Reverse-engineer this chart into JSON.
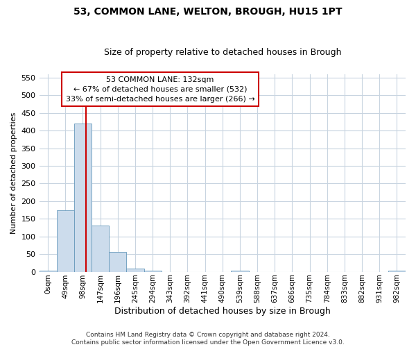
{
  "title": "53, COMMON LANE, WELTON, BROUGH, HU15 1PT",
  "subtitle": "Size of property relative to detached houses in Brough",
  "xlabel": "Distribution of detached houses by size in Brough",
  "ylabel": "Number of detached properties",
  "footnote": "Contains HM Land Registry data © Crown copyright and database right 2024.\nContains public sector information licensed under the Open Government Licence v3.0.",
  "bar_labels": [
    "0sqm",
    "49sqm",
    "98sqm",
    "147sqm",
    "196sqm",
    "245sqm",
    "294sqm",
    "343sqm",
    "392sqm",
    "441sqm",
    "490sqm",
    "539sqm",
    "588sqm",
    "637sqm",
    "686sqm",
    "735sqm",
    "784sqm",
    "833sqm",
    "882sqm",
    "931sqm",
    "982sqm"
  ],
  "bar_values": [
    3,
    175,
    420,
    130,
    57,
    8,
    3,
    0,
    0,
    0,
    0,
    3,
    0,
    0,
    0,
    0,
    0,
    0,
    0,
    0,
    3
  ],
  "bar_color": "#ccdcec",
  "bar_edgecolor": "#6699bb",
  "vline_color": "#cc0000",
  "annotation_text": "53 COMMON LANE: 132sqm\n← 67% of detached houses are smaller (532)\n33% of semi-detached houses are larger (266) →",
  "annotation_box_color": "#ffffff",
  "annotation_box_edgecolor": "#cc0000",
  "ylim": [
    0,
    560
  ],
  "yticks": [
    0,
    50,
    100,
    150,
    200,
    250,
    300,
    350,
    400,
    450,
    500,
    550
  ],
  "background_color": "#ffffff",
  "grid_color": "#c8d4e0",
  "title_fontsize": 10,
  "subtitle_fontsize": 9,
  "ylabel_fontsize": 8,
  "xlabel_fontsize": 9,
  "footnote_fontsize": 6.5,
  "tick_fontsize": 7.5
}
